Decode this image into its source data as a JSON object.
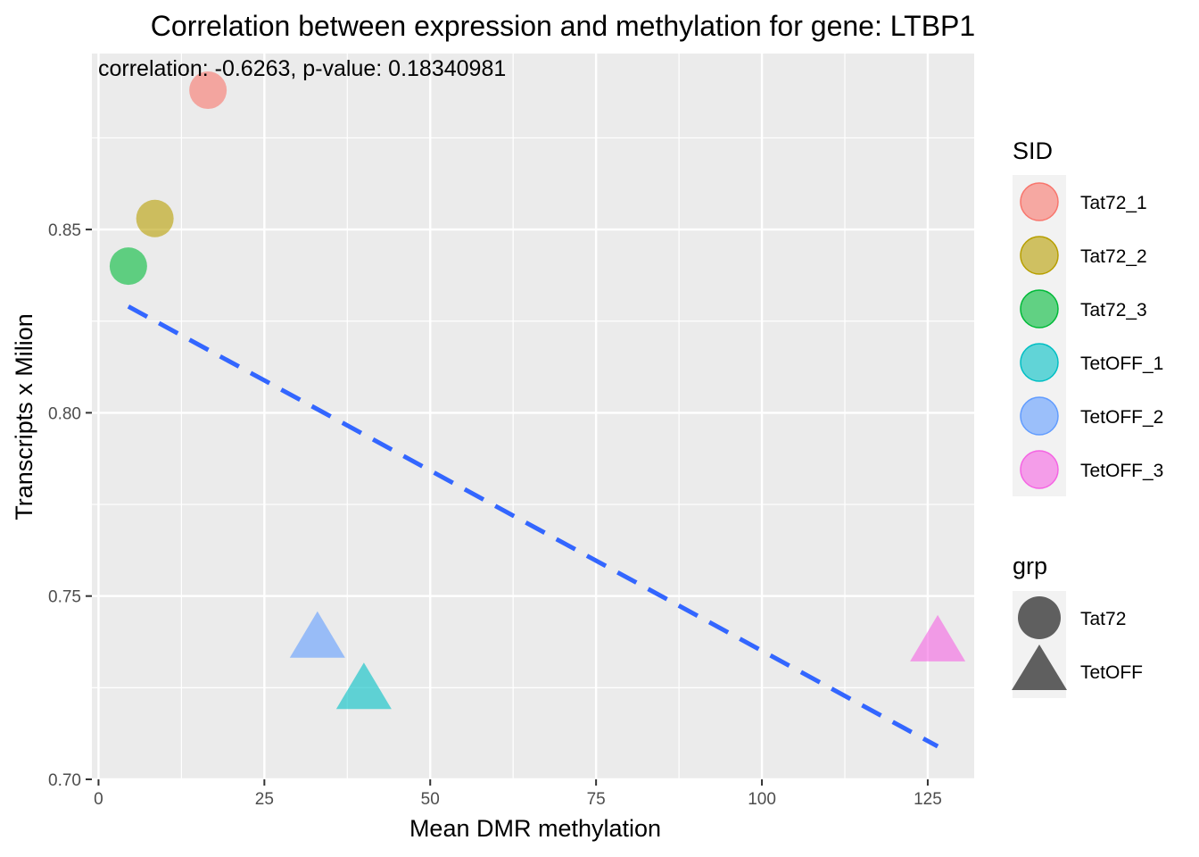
{
  "chart_data": {
    "type": "scatter",
    "title": "Correlation between expression and methylation for gene: LTBP1",
    "annotation": "correlation: -0.6263, p-value: 0.18340981",
    "xlabel": "Mean DMR methylation",
    "ylabel": "Transcripts x Milion",
    "xlim": [
      -1,
      132
    ],
    "ylim": [
      0.7,
      0.898
    ],
    "x_ticks": [
      0,
      25,
      50,
      75,
      100,
      125
    ],
    "y_ticks": [
      0.7,
      0.75,
      0.8,
      0.85
    ],
    "x_tick_labels": [
      "0",
      "25",
      "50",
      "75",
      "100",
      "125"
    ],
    "y_tick_labels": [
      "0.70",
      "0.75",
      "0.80",
      "0.85"
    ],
    "grid": true,
    "points": [
      {
        "sid": "Tat72_1",
        "grp": "Tat72",
        "x": 16.5,
        "y": 0.888
      },
      {
        "sid": "Tat72_2",
        "grp": "Tat72",
        "x": 8.5,
        "y": 0.853
      },
      {
        "sid": "Tat72_3",
        "grp": "Tat72",
        "x": 4.5,
        "y": 0.84
      },
      {
        "sid": "TetOFF_1",
        "grp": "TetOFF",
        "x": 40,
        "y": 0.724
      },
      {
        "sid": "TetOFF_2",
        "grp": "TetOFF",
        "x": 33,
        "y": 0.738
      },
      {
        "sid": "TetOFF_3",
        "grp": "TetOFF",
        "x": 126.5,
        "y": 0.737
      }
    ],
    "trend_line": {
      "x": [
        4.5,
        126.5
      ],
      "y": [
        0.829,
        0.709
      ],
      "color": "#3366ff",
      "style": "dashed"
    },
    "legend_placement": "right",
    "legend_sid": {
      "title": "SID",
      "entries": [
        {
          "label": "Tat72_1",
          "color": "#f8766d"
        },
        {
          "label": "Tat72_2",
          "color": "#b79f00"
        },
        {
          "label": "Tat72_3",
          "color": "#00ba38"
        },
        {
          "label": "TetOFF_1",
          "color": "#00bfc4"
        },
        {
          "label": "TetOFF_2",
          "color": "#619cff"
        },
        {
          "label": "TetOFF_3",
          "color": "#f564e3"
        }
      ]
    },
    "legend_grp": {
      "title": "grp",
      "entries": [
        {
          "label": "Tat72",
          "shape": "circle"
        },
        {
          "label": "TetOFF",
          "shape": "triangle"
        }
      ]
    },
    "colors": {
      "panel_background": "#ebebeb",
      "grid": "#ffffff",
      "legend_shape": "#5f5f5f"
    }
  }
}
